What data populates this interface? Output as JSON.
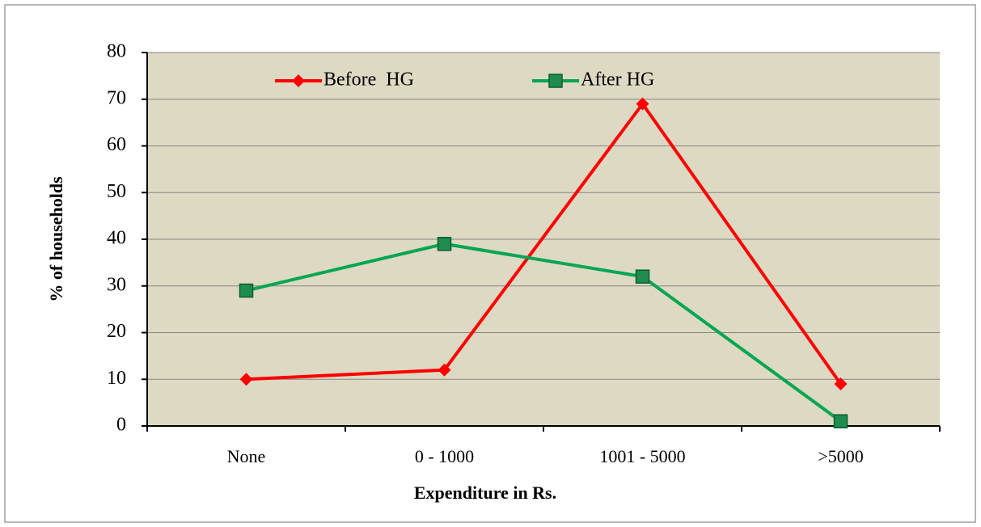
{
  "chart_data": {
    "type": "line",
    "x_label": "Expenditure in Rs.",
    "y_label": "% of households",
    "categories": [
      "None",
      "0 - 1000",
      "1001 - 5000",
      ">5000"
    ],
    "series": [
      {
        "name": "Before  HG",
        "color": "#ff0000",
        "marker": "diamond",
        "values": [
          10,
          12,
          69,
          9
        ]
      },
      {
        "name": "After HG",
        "color": "#00a651",
        "marker": "square",
        "values": [
          29,
          39,
          32,
          1
        ]
      }
    ],
    "ylim": [
      0,
      80
    ],
    "yticks": [
      0,
      10,
      20,
      30,
      40,
      50,
      60,
      70,
      80
    ],
    "grid": true,
    "legend": "top",
    "plot_background": "#ddd9c3"
  }
}
